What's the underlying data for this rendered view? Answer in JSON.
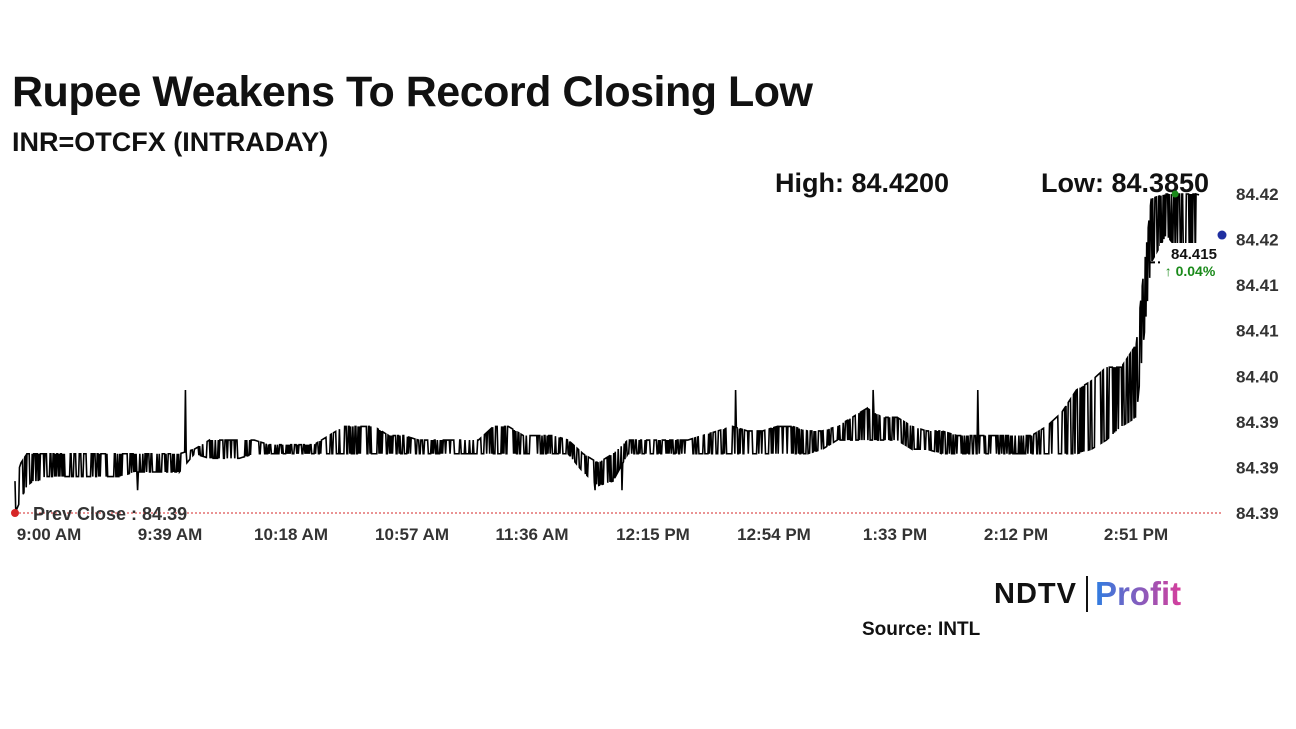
{
  "header": {
    "title": "Rupee Weakens To Record Closing Low",
    "subtitle": "INR=OTCFX (INTRADAY)",
    "high_label": "High: 84.4200",
    "low_label": "Low: 84.3850"
  },
  "chart_data": {
    "type": "line",
    "title": "Rupee Weakens To Record Closing Low",
    "subtitle": "INR=OTCFX (INTRADAY)",
    "ticker": "INR=OTCFX",
    "xlabel": "",
    "ylabel": "",
    "x_ticks": [
      "9:00 AM",
      "9:39 AM",
      "10:18 AM",
      "10:57 AM",
      "11:36 AM",
      "12:15 PM",
      "12:54 PM",
      "1:33 PM",
      "2:12 PM",
      "2:51 PM"
    ],
    "y_ticks": [
      "84.42",
      "84.42",
      "84.41",
      "84.41",
      "84.40",
      "84.39",
      "84.39",
      "84.39"
    ],
    "ylim": [
      84.385,
      84.42
    ],
    "session_minutes": 400,
    "prev_close": 84.385,
    "prev_close_label": "Prev Close : 84.39",
    "high": 84.42,
    "low": 84.385,
    "last_value_label": "84.415",
    "change_label": "↑ 0.04%",
    "band": {
      "minutes": [
        0,
        2,
        4,
        6,
        8,
        10,
        15,
        20,
        25,
        30,
        35,
        40,
        45,
        50,
        55,
        60,
        65,
        70,
        75,
        80,
        85,
        90,
        95,
        100,
        105,
        110,
        115,
        120,
        125,
        130,
        135,
        140,
        145,
        150,
        155,
        160,
        165,
        170,
        175,
        180,
        185,
        190,
        195,
        200,
        205,
        210,
        215,
        220,
        225,
        230,
        235,
        240,
        245,
        250,
        255,
        260,
        265,
        270,
        275,
        280,
        285,
        290,
        295,
        300,
        305,
        310,
        315,
        320,
        325,
        330,
        335,
        340,
        345,
        350,
        355,
        360,
        365,
        370,
        375,
        380,
        385,
        390,
        395,
        400
      ],
      "low": [
        84.385,
        84.3865,
        84.388,
        84.3885,
        84.3885,
        84.389,
        84.389,
        84.389,
        84.389,
        84.389,
        84.389,
        84.3895,
        84.3895,
        84.3895,
        84.3895,
        84.3915,
        84.391,
        84.391,
        84.391,
        84.3915,
        84.3915,
        84.3915,
        84.3915,
        84.3915,
        84.3915,
        84.3915,
        84.3915,
        84.3915,
        84.3915,
        84.3915,
        84.3915,
        84.3915,
        84.3915,
        84.3915,
        84.3915,
        84.3915,
        84.3915,
        84.3915,
        84.3915,
        84.3915,
        84.3915,
        84.3895,
        84.388,
        84.3885,
        84.3915,
        84.3915,
        84.3915,
        84.3915,
        84.3915,
        84.3915,
        84.3915,
        84.3915,
        84.3915,
        84.3915,
        84.3915,
        84.3915,
        84.3915,
        84.392,
        84.393,
        84.393,
        84.393,
        84.393,
        84.393,
        84.392,
        84.392,
        84.3915,
        84.3915,
        84.3915,
        84.3915,
        84.3915,
        84.3915,
        84.3915,
        84.3915,
        84.3915,
        84.3915,
        84.392,
        84.393,
        84.3945,
        84.3955,
        84.4125,
        84.4155,
        84.4135,
        84.4125,
        84.4125
      ],
      "high": [
        84.3885,
        84.3905,
        84.3915,
        84.3915,
        84.3915,
        84.3915,
        84.3915,
        84.3915,
        84.3915,
        84.3915,
        84.3915,
        84.3915,
        84.3915,
        84.3915,
        84.3915,
        84.392,
        84.393,
        84.393,
        84.393,
        84.393,
        84.3925,
        84.3925,
        84.3925,
        84.3925,
        84.3935,
        84.3945,
        84.3945,
        84.3945,
        84.3935,
        84.3935,
        84.393,
        84.393,
        84.393,
        84.393,
        84.393,
        84.3945,
        84.3945,
        84.3935,
        84.3935,
        84.3935,
        84.393,
        84.3915,
        84.3905,
        84.3915,
        84.393,
        84.393,
        84.393,
        84.393,
        84.393,
        84.3935,
        84.394,
        84.3945,
        84.394,
        84.394,
        84.3945,
        84.3945,
        84.394,
        84.394,
        84.3945,
        84.3955,
        84.3965,
        84.3955,
        84.3955,
        84.3945,
        84.394,
        84.394,
        84.3935,
        84.3935,
        84.3935,
        84.3935,
        84.3935,
        84.3935,
        84.3945,
        84.396,
        84.3985,
        84.3995,
        84.401,
        84.401,
        84.4035,
        84.4195,
        84.42,
        84.42,
        84.42,
        84.4195
      ]
    },
    "spikes": [
      {
        "minute": 41,
        "value": 84.3875
      },
      {
        "minute": 57,
        "value": 84.3985
      },
      {
        "minute": 194,
        "value": 84.3875
      },
      {
        "minute": 203,
        "value": 84.3875
      },
      {
        "minute": 241,
        "value": 84.3985
      },
      {
        "minute": 287,
        "value": 84.3985
      },
      {
        "minute": 322,
        "value": 84.3985
      }
    ]
  },
  "branding": {
    "ndtv": "NDTV",
    "profit": "Profit",
    "source": "Source: INTL"
  },
  "colors": {
    "line": "#000000",
    "prev_close": "#d62728",
    "high_marker": "#1a8a1a",
    "low_marker": "#1f2fa0",
    "change_up": "#1a8a1a",
    "profit_start": "#2f7de1",
    "profit_end": "#d63e9c"
  }
}
